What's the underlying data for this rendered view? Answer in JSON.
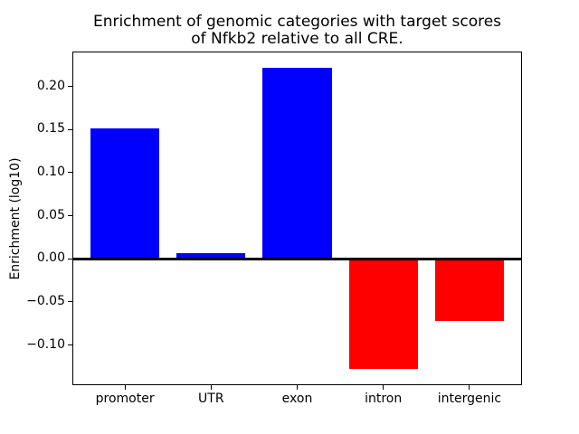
{
  "figure": {
    "background": "#ffffff",
    "title_line1": "Enrichment of genomic categories with target scores",
    "title_line2": "of Nfkb2 relative to all CRE."
  },
  "chart_data": {
    "type": "bar",
    "title": "Enrichment of genomic categories with target scores\nof Nfkb2 relative to all CRE.",
    "xlabel": "",
    "ylabel": "Enrichment (log10)",
    "categories": [
      "promoter",
      "UTR",
      "exon",
      "intron",
      "intergenic"
    ],
    "values": [
      0.151,
      0.007,
      0.222,
      -0.128,
      -0.072
    ],
    "bar_colors": [
      "#0000ff",
      "#0000ff",
      "#0000ff",
      "#ff0000",
      "#ff0000"
    ],
    "positive_color": "#0000ff",
    "negative_color": "#ff0000",
    "yticks": [
      0.2,
      0.15,
      0.1,
      0.05,
      0.0,
      -0.05,
      -0.1
    ],
    "ylim": [
      -0.1455,
      0.2395
    ],
    "xlim": [
      -0.6,
      4.6
    ],
    "bar_width_units": 0.8,
    "zero_line": {
      "y": 0.0,
      "color": "#000000",
      "thickness_px": 3
    },
    "grid": false,
    "legend": null,
    "axis_color": "#000000",
    "text_color": "#000000"
  }
}
